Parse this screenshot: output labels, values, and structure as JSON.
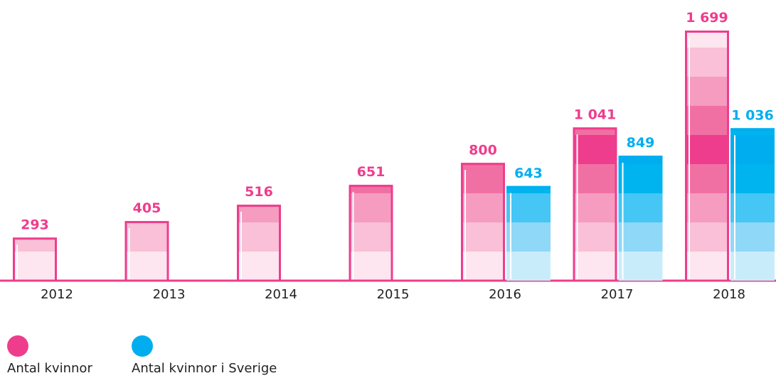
{
  "chart_data": {
    "type": "bar",
    "categories": [
      "2012",
      "2013",
      "2014",
      "2015",
      "2016",
      "2017",
      "2018"
    ],
    "series": [
      {
        "name": "Antal kvinnor",
        "color": "#ee3d8c",
        "values": [
          293,
          405,
          516,
          651,
          800,
          1041,
          1699
        ],
        "value_labels": [
          "293",
          "405",
          "516",
          "651",
          "800",
          "1 041",
          "1 699"
        ]
      },
      {
        "name": "Antal kvinnor i Sverige",
        "color": "#00aeef",
        "values": [
          null,
          null,
          null,
          null,
          643,
          849,
          1036
        ],
        "value_labels": [
          null,
          null,
          null,
          null,
          "643",
          "849",
          "1 036"
        ]
      }
    ]
  }
}
